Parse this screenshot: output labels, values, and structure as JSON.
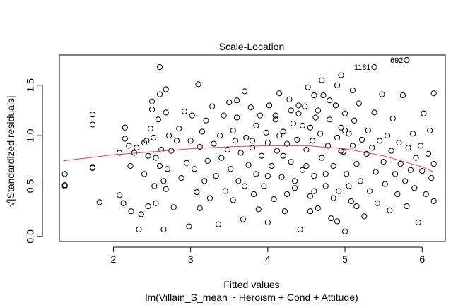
{
  "chart_data": {
    "type": "scatter",
    "title": "Scale-Location",
    "xlabel": "Fitted values",
    "subtitle": "lm(Villain_S_mean ~ Heroism + Cond + Attitude)",
    "ylabel": "√|Standardized residuals|",
    "xlim": [
      1.3,
      6.3
    ],
    "ylim": [
      -0.05,
      1.8
    ],
    "x_ticks": [
      "2",
      "3",
      "4",
      "5",
      "6"
    ],
    "y_ticks": [
      "0.0",
      "0.5",
      "1.0",
      "1.5"
    ],
    "grid": false,
    "colors": {
      "points": "#000000",
      "smooth": "#e8424f",
      "frame": "#000000"
    },
    "smooth_line": [
      {
        "x": 1.35,
        "y": 0.75
      },
      {
        "x": 2.0,
        "y": 0.81
      },
      {
        "x": 2.5,
        "y": 0.84
      },
      {
        "x": 3.0,
        "y": 0.87
      },
      {
        "x": 3.5,
        "y": 0.89
      },
      {
        "x": 4.0,
        "y": 0.9
      },
      {
        "x": 4.5,
        "y": 0.9
      },
      {
        "x": 5.0,
        "y": 0.87
      },
      {
        "x": 5.5,
        "y": 0.8
      },
      {
        "x": 6.0,
        "y": 0.69
      },
      {
        "x": 6.15,
        "y": 0.64
      }
    ],
    "labeled_points": [
      {
        "label": "1181",
        "x": 5.38,
        "y": 1.68
      },
      {
        "label": "692",
        "x": 5.8,
        "y": 1.75
      }
    ],
    "points": [
      [
        1.37,
        0.62
      ],
      [
        1.37,
        0.5
      ],
      [
        1.37,
        0.51
      ],
      [
        1.73,
        1.21
      ],
      [
        1.73,
        1.11
      ],
      [
        1.73,
        0.69
      ],
      [
        1.73,
        0.68
      ],
      [
        1.82,
        0.34
      ],
      [
        2.08,
        0.41
      ],
      [
        2.08,
        0.83
      ],
      [
        2.13,
        0.33
      ],
      [
        2.15,
        0.97
      ],
      [
        2.15,
        1.08
      ],
      [
        2.2,
        0.9
      ],
      [
        2.22,
        0.7
      ],
      [
        2.23,
        0.25
      ],
      [
        2.27,
        0.83
      ],
      [
        2.3,
        0.88
      ],
      [
        2.33,
        0.07
      ],
      [
        2.36,
        0.22
      ],
      [
        2.4,
        0.62
      ],
      [
        2.4,
        0.93
      ],
      [
        2.43,
        0.95
      ],
      [
        2.45,
        0.3
      ],
      [
        2.45,
        0.8
      ],
      [
        2.48,
        1.07
      ],
      [
        2.5,
        1.34
      ],
      [
        2.5,
        1.26
      ],
      [
        2.52,
        0.98
      ],
      [
        2.53,
        0.5
      ],
      [
        2.55,
        0.33
      ],
      [
        2.55,
        0.78
      ],
      [
        2.58,
        1.16
      ],
      [
        2.6,
        1.41
      ],
      [
        2.6,
        1.68
      ],
      [
        2.6,
        0.7
      ],
      [
        2.62,
        0.86
      ],
      [
        2.65,
        0.55
      ],
      [
        2.65,
        0.07
      ],
      [
        2.68,
        1.46
      ],
      [
        2.68,
        1.23
      ],
      [
        2.68,
        0.47
      ],
      [
        2.7,
        0.67
      ],
      [
        2.72,
        1.0
      ],
      [
        2.75,
        0.85
      ],
      [
        2.78,
        0.29
      ],
      [
        2.82,
        0.95
      ],
      [
        2.85,
        1.07
      ],
      [
        2.88,
        0.58
      ],
      [
        2.92,
        1.24
      ],
      [
        2.95,
        0.73
      ],
      [
        2.98,
        0.1
      ],
      [
        3.0,
        0.95
      ],
      [
        3.02,
        1.2
      ],
      [
        3.05,
        0.67
      ],
      [
        3.08,
        0.44
      ],
      [
        3.1,
        1.51
      ],
      [
        3.12,
        0.89
      ],
      [
        3.12,
        0.28
      ],
      [
        3.15,
        1.04
      ],
      [
        3.18,
        0.55
      ],
      [
        3.2,
        1.15
      ],
      [
        3.22,
        0.75
      ],
      [
        3.25,
        0.38
      ],
      [
        3.28,
        1.29
      ],
      [
        3.3,
        0.92
      ],
      [
        3.33,
        0.6
      ],
      [
        3.36,
        0.12
      ],
      [
        3.38,
        1.0
      ],
      [
        3.4,
        0.78
      ],
      [
        3.43,
        1.2
      ],
      [
        3.45,
        0.45
      ],
      [
        3.48,
        0.86
      ],
      [
        3.5,
        1.33
      ],
      [
        3.52,
        0.67
      ],
      [
        3.55,
        1.05
      ],
      [
        3.55,
        0.36
      ],
      [
        3.58,
        0.95
      ],
      [
        3.6,
        1.18
      ],
      [
        3.62,
        0.55
      ],
      [
        3.65,
        0.83
      ],
      [
        3.68,
        0.17
      ],
      [
        3.7,
        1.44
      ],
      [
        3.72,
        0.98
      ],
      [
        3.75,
        0.71
      ],
      [
        3.78,
        1.28
      ],
      [
        3.8,
        0.88
      ],
      [
        3.82,
        0.42
      ],
      [
        3.85,
        1.1
      ],
      [
        3.85,
        0.62
      ],
      [
        3.88,
        0.27
      ],
      [
        3.9,
        1.2
      ],
      [
        3.92,
        0.8
      ],
      [
        3.95,
        0.5
      ],
      [
        3.98,
        1.03
      ],
      [
        4.0,
        0.93
      ],
      [
        4.0,
        0.14
      ],
      [
        4.02,
        1.3
      ],
      [
        4.05,
        0.7
      ],
      [
        4.08,
        0.37
      ],
      [
        4.1,
        1.16
      ],
      [
        4.12,
        0.85
      ],
      [
        4.15,
        1.42
      ],
      [
        4.18,
        0.59
      ],
      [
        4.2,
        1.04
      ],
      [
        4.22,
        0.25
      ],
      [
        4.25,
        0.92
      ],
      [
        4.28,
        1.36
      ],
      [
        4.3,
        0.74
      ],
      [
        4.33,
        1.12
      ],
      [
        4.35,
        0.48
      ],
      [
        4.38,
        0.96
      ],
      [
        4.4,
        1.22
      ],
      [
        4.42,
        0.07
      ],
      [
        4.45,
        0.66
      ],
      [
        4.48,
        1.29
      ],
      [
        4.5,
        0.86
      ],
      [
        4.52,
        1.48
      ],
      [
        4.55,
        1.08
      ],
      [
        4.55,
        0.4
      ],
      [
        4.58,
        0.95
      ],
      [
        4.6,
        0.6
      ],
      [
        4.62,
        1.18
      ],
      [
        4.65,
        0.28
      ],
      [
        4.68,
        1.02
      ],
      [
        4.7,
        0.78
      ],
      [
        4.72,
        1.4
      ],
      [
        4.75,
        0.5
      ],
      [
        4.78,
        0.9
      ],
      [
        4.8,
        1.16
      ],
      [
        4.82,
        0.18
      ],
      [
        4.85,
        0.7
      ],
      [
        4.88,
        1.3
      ],
      [
        4.9,
        0.98
      ],
      [
        4.92,
        0.45
      ],
      [
        4.95,
        1.08
      ],
      [
        4.98,
        0.84
      ],
      [
        5.0,
        1.22
      ],
      [
        5.0,
        0.05
      ],
      [
        5.02,
        0.62
      ],
      [
        5.05,
        1.02
      ],
      [
        5.08,
        0.35
      ],
      [
        5.1,
        0.9
      ],
      [
        5.12,
        1.15
      ],
      [
        5.15,
        0.72
      ],
      [
        5.18,
        1.32
      ],
      [
        5.2,
        0.55
      ],
      [
        5.22,
        0.96
      ],
      [
        5.25,
        0.2
      ],
      [
        5.28,
        0.82
      ],
      [
        5.3,
        1.05
      ],
      [
        5.32,
        0.45
      ],
      [
        5.35,
        0.88
      ],
      [
        5.38,
        1.23
      ],
      [
        5.4,
        0.64
      ],
      [
        5.42,
        0.33
      ],
      [
        5.45,
        0.95
      ],
      [
        5.48,
        1.41
      ],
      [
        5.5,
        0.74
      ],
      [
        5.52,
        0.52
      ],
      [
        5.55,
        1.0
      ],
      [
        5.58,
        0.26
      ],
      [
        5.6,
        0.85
      ],
      [
        5.62,
        1.17
      ],
      [
        5.65,
        0.62
      ],
      [
        5.68,
        0.42
      ],
      [
        5.7,
        0.93
      ],
      [
        5.72,
        0.72
      ],
      [
        5.75,
        1.4
      ],
      [
        5.78,
        0.55
      ],
      [
        5.8,
        0.3
      ],
      [
        5.82,
        0.88
      ],
      [
        5.85,
        0.66
      ],
      [
        5.88,
        1.02
      ],
      [
        5.9,
        0.48
      ],
      [
        5.92,
        0.78
      ],
      [
        5.95,
        0.14
      ],
      [
        5.98,
        0.9
      ],
      [
        6.0,
        0.65
      ],
      [
        6.02,
        1.22
      ],
      [
        6.05,
        0.42
      ],
      [
        6.08,
        0.82
      ],
      [
        6.1,
        1.05
      ],
      [
        6.12,
        0.58
      ],
      [
        6.15,
        1.42
      ],
      [
        6.15,
        0.72
      ],
      [
        6.15,
        0.35
      ],
      [
        4.3,
        1.25
      ],
      [
        4.6,
        1.4
      ],
      [
        4.9,
        1.5
      ],
      [
        4.95,
        1.6
      ],
      [
        4.7,
        1.55
      ],
      [
        4.4,
        1.3
      ],
      [
        5.1,
        1.45
      ],
      [
        3.6,
        1.35
      ],
      [
        4.1,
        1.2
      ],
      [
        4.45,
        1.1
      ],
      [
        4.65,
        1.25
      ],
      [
        4.8,
        1.35
      ],
      [
        5.0,
        1.05
      ],
      [
        4.2,
        0.8
      ],
      [
        4.5,
        0.7
      ],
      [
        4.75,
        0.62
      ],
      [
        5.05,
        0.5
      ],
      [
        4.35,
        0.55
      ],
      [
        4.6,
        0.45
      ],
      [
        4.85,
        0.38
      ],
      [
        5.15,
        0.3
      ],
      [
        4.0,
        0.6
      ],
      [
        3.7,
        0.5
      ],
      [
        4.25,
        0.42
      ],
      [
        4.55,
        0.25
      ],
      [
        4.9,
        0.15
      ],
      [
        3.8,
        0.95
      ],
      [
        4.15,
        1.0
      ],
      [
        4.95,
        0.85
      ]
    ]
  }
}
